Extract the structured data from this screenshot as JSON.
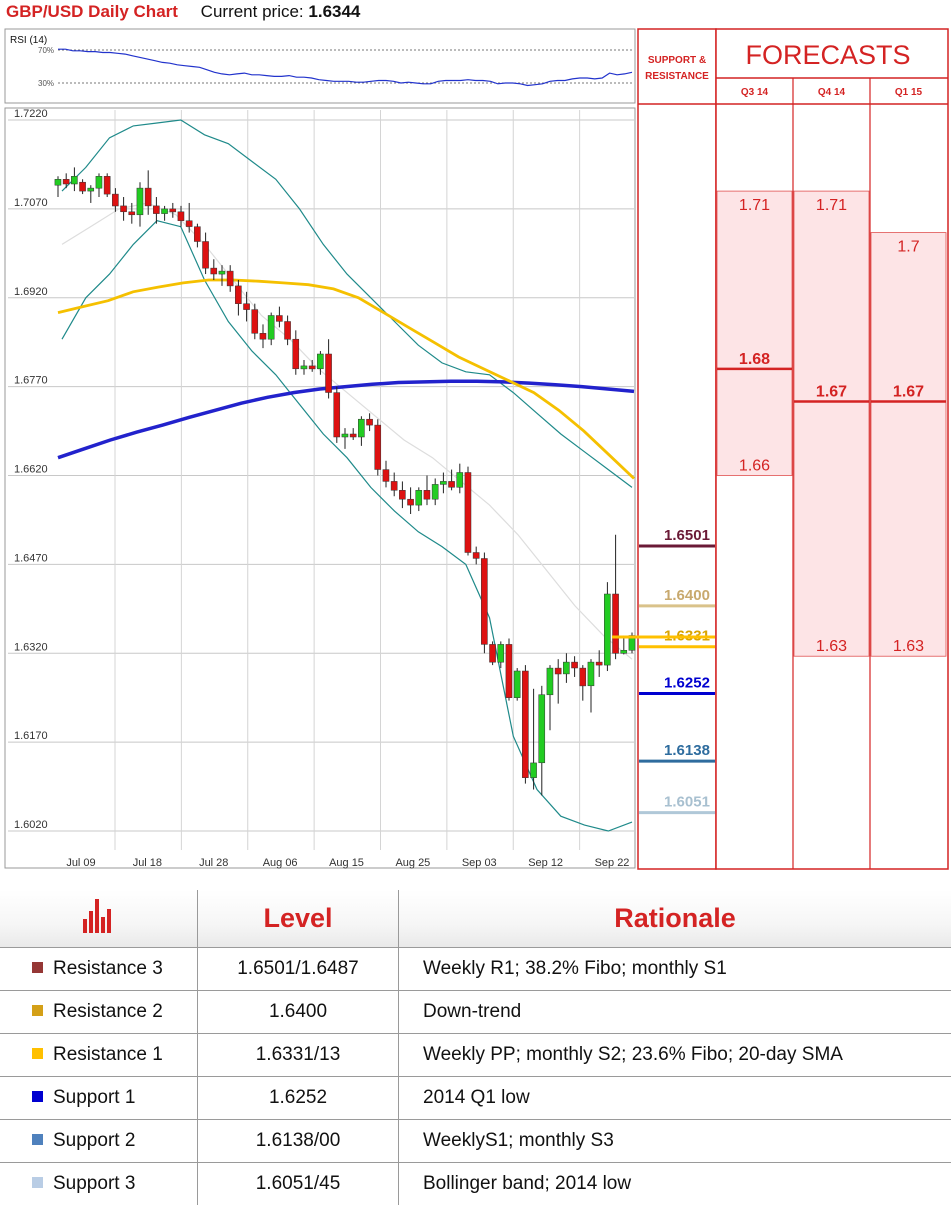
{
  "header": {
    "title": "GBP/USD Daily Chart",
    "price_label": "Current price:",
    "price_value": "1.6344"
  },
  "rsi": {
    "label": "RSI (14)",
    "levels": [
      "70%",
      "30%"
    ],
    "values": [
      71,
      71,
      69,
      69,
      68,
      68,
      67,
      67,
      66,
      65,
      63,
      61,
      59,
      57,
      55,
      54,
      52,
      51,
      50,
      49,
      46,
      43,
      41,
      40,
      41,
      42,
      40,
      40,
      39,
      38,
      38,
      39,
      37,
      37,
      36,
      34,
      33,
      32,
      32,
      32,
      31,
      31,
      32,
      33,
      33,
      32,
      30,
      31,
      30,
      29,
      29,
      32,
      33,
      33,
      33,
      34,
      33,
      33,
      32,
      29,
      30,
      30,
      29,
      27,
      28,
      29,
      32,
      33,
      33,
      35,
      36,
      36,
      35,
      36,
      42,
      40,
      41,
      43
    ]
  },
  "chart_data": {
    "type": "candlestick",
    "title": "GBP/USD Daily Chart",
    "ylim": [
      1.602,
      1.722
    ],
    "y_ticks": [
      "1.7220",
      "1.7070",
      "1.6920",
      "1.6770",
      "1.6620",
      "1.6470",
      "1.6320",
      "1.6170",
      "1.6020"
    ],
    "x_tick_labels": [
      "Jul 09",
      "Jul 18",
      "Jul 28",
      "Aug 06",
      "Aug 15",
      "Aug 25",
      "Sep 03",
      "Sep 12",
      "Sep 22"
    ],
    "candles": [
      [
        1.711,
        1.7125,
        1.709,
        1.712
      ],
      [
        1.712,
        1.713,
        1.7105,
        1.7112
      ],
      [
        1.7112,
        1.714,
        1.71,
        1.7125
      ],
      [
        1.7115,
        1.712,
        1.7095,
        1.71
      ],
      [
        1.71,
        1.711,
        1.708,
        1.7105
      ],
      [
        1.7105,
        1.713,
        1.709,
        1.7125
      ],
      [
        1.7125,
        1.713,
        1.709,
        1.7095
      ],
      [
        1.7095,
        1.7105,
        1.7065,
        1.7075
      ],
      [
        1.7075,
        1.709,
        1.705,
        1.7065
      ],
      [
        1.7065,
        1.708,
        1.7045,
        1.706
      ],
      [
        1.706,
        1.7115,
        1.704,
        1.7105
      ],
      [
        1.7105,
        1.7135,
        1.706,
        1.7075
      ],
      [
        1.7075,
        1.709,
        1.7045,
        1.7062
      ],
      [
        1.7062,
        1.7075,
        1.705,
        1.707
      ],
      [
        1.707,
        1.708,
        1.7055,
        1.7065
      ],
      [
        1.7065,
        1.7075,
        1.704,
        1.705
      ],
      [
        1.705,
        1.708,
        1.703,
        1.704
      ],
      [
        1.704,
        1.7045,
        1.7005,
        1.7015
      ],
      [
        1.7015,
        1.703,
        1.696,
        1.697
      ],
      [
        1.697,
        1.6985,
        1.695,
        1.696
      ],
      [
        1.696,
        1.6975,
        1.694,
        1.6965
      ],
      [
        1.6965,
        1.6975,
        1.693,
        1.694
      ],
      [
        1.694,
        1.695,
        1.689,
        1.691
      ],
      [
        1.691,
        1.693,
        1.688,
        1.69
      ],
      [
        1.69,
        1.691,
        1.685,
        1.686
      ],
      [
        1.686,
        1.6875,
        1.6835,
        1.685
      ],
      [
        1.685,
        1.6895,
        1.684,
        1.689
      ],
      [
        1.689,
        1.6905,
        1.687,
        1.688
      ],
      [
        1.688,
        1.689,
        1.684,
        1.685
      ],
      [
        1.685,
        1.6865,
        1.679,
        1.68
      ],
      [
        1.68,
        1.6815,
        1.679,
        1.6805
      ],
      [
        1.6805,
        1.6815,
        1.6795,
        1.68
      ],
      [
        1.68,
        1.683,
        1.679,
        1.6825
      ],
      [
        1.6825,
        1.685,
        1.675,
        1.676
      ],
      [
        1.676,
        1.677,
        1.6675,
        1.6685
      ],
      [
        1.6685,
        1.67,
        1.6665,
        1.669
      ],
      [
        1.669,
        1.67,
        1.668,
        1.6685
      ],
      [
        1.6685,
        1.672,
        1.667,
        1.6715
      ],
      [
        1.6715,
        1.6725,
        1.6695,
        1.6705
      ],
      [
        1.6705,
        1.6715,
        1.662,
        1.663
      ],
      [
        1.663,
        1.6645,
        1.66,
        1.661
      ],
      [
        1.661,
        1.6625,
        1.6585,
        1.6595
      ],
      [
        1.6595,
        1.661,
        1.6565,
        1.658
      ],
      [
        1.658,
        1.66,
        1.6555,
        1.657
      ],
      [
        1.657,
        1.66,
        1.656,
        1.6595
      ],
      [
        1.6595,
        1.662,
        1.657,
        1.658
      ],
      [
        1.658,
        1.6615,
        1.657,
        1.6605
      ],
      [
        1.6605,
        1.6625,
        1.659,
        1.661
      ],
      [
        1.661,
        1.663,
        1.6595,
        1.66
      ],
      [
        1.66,
        1.664,
        1.659,
        1.6625
      ],
      [
        1.6625,
        1.6635,
        1.6485,
        1.649
      ],
      [
        1.649,
        1.65,
        1.647,
        1.648
      ],
      [
        1.648,
        1.649,
        1.632,
        1.6335
      ],
      [
        1.6335,
        1.634,
        1.63,
        1.6305
      ],
      [
        1.6305,
        1.634,
        1.6295,
        1.6335
      ],
      [
        1.6335,
        1.6345,
        1.624,
        1.6245
      ],
      [
        1.6245,
        1.6295,
        1.624,
        1.629
      ],
      [
        1.629,
        1.63,
        1.61,
        1.611
      ],
      [
        1.611,
        1.626,
        1.609,
        1.6135
      ],
      [
        1.6135,
        1.6265,
        1.608,
        1.625
      ],
      [
        1.625,
        1.63,
        1.619,
        1.6295
      ],
      [
        1.6295,
        1.631,
        1.6235,
        1.6285
      ],
      [
        1.6285,
        1.632,
        1.627,
        1.6305
      ],
      [
        1.6305,
        1.6315,
        1.628,
        1.6295
      ],
      [
        1.6295,
        1.63,
        1.624,
        1.6265
      ],
      [
        1.6265,
        1.631,
        1.622,
        1.6305
      ],
      [
        1.6305,
        1.6325,
        1.628,
        1.63
      ],
      [
        1.63,
        1.644,
        1.629,
        1.642
      ],
      [
        1.642,
        1.652,
        1.631,
        1.632
      ],
      [
        1.632,
        1.635,
        1.6318,
        1.6325
      ],
      [
        1.6325,
        1.6355,
        1.632,
        1.635
      ]
    ],
    "series": [
      {
        "name": "",
        "values": [
          1.6895,
          1.6905,
          1.6915,
          1.693,
          1.6938,
          1.6945,
          1.695,
          1.695,
          1.6948,
          1.6945,
          1.6942,
          1.6935,
          1.692,
          1.6895,
          1.687,
          1.6845,
          1.682,
          1.68,
          1.678,
          1.676,
          1.673,
          1.6695,
          1.6655,
          1.6615
        ]
      },
      {
        "name": "",
        "values": [
          1.665,
          1.6665,
          1.668,
          1.6693,
          1.6705,
          1.6718,
          1.673,
          1.6742,
          1.6752,
          1.676,
          1.6766,
          1.677,
          1.6774,
          1.6777,
          1.6778,
          1.6779,
          1.6779,
          1.6778,
          1.6776,
          1.6773,
          1.677,
          1.6766,
          1.6762
        ]
      },
      {
        "name": "",
        "values": [
          1.71,
          1.714,
          1.719,
          1.721,
          1.7215,
          1.722,
          1.7195,
          1.718,
          1.715,
          1.712,
          1.707,
          1.701,
          1.696,
          1.692,
          1.688,
          1.684,
          1.681,
          1.6795,
          1.679,
          1.676,
          1.6725,
          1.669,
          1.666,
          1.663,
          1.66
        ]
      },
      {
        "name": "",
        "values": [
          1.685,
          1.692,
          1.696,
          1.701,
          1.705,
          1.704,
          1.695,
          1.688,
          1.683,
          1.679,
          1.674,
          1.669,
          1.665,
          1.66,
          1.656,
          1.6525,
          1.65,
          1.647,
          1.638,
          1.618,
          1.609,
          1.6045,
          1.603,
          1.602,
          1.6035
        ]
      },
      {
        "name": "",
        "values": [
          1.701,
          1.704,
          1.707,
          1.708,
          1.706,
          1.701,
          1.695,
          1.689,
          1.685,
          1.68,
          1.676,
          1.672,
          1.668,
          1.665,
          1.661,
          1.657,
          1.652,
          1.646,
          1.64,
          1.635,
          1.631
        ]
      }
    ]
  },
  "sr_panel": {
    "header": "SUPPORT & RESISTANCE",
    "levels": [
      {
        "label": "1.6501",
        "price": 1.6501,
        "color": "#6a1a36",
        "text": "#6a1a36"
      },
      {
        "label": "1.6400",
        "price": 1.64,
        "color": "#d9c28a",
        "text": "#c8a96e"
      },
      {
        "label": "1.6331",
        "price": 1.6331,
        "color": "#ffc000",
        "text": "#d9a400"
      },
      {
        "label": "1.6252",
        "price": 1.6252,
        "color": "#0000d0",
        "text": "#0000d0"
      },
      {
        "label": "1.6138",
        "price": 1.6138,
        "color": "#2e6c9e",
        "text": "#2e6c9e"
      },
      {
        "label": "1.6051",
        "price": 1.6051,
        "color": "#b0c8d8",
        "text": "#a8c0d0"
      }
    ]
  },
  "forecasts": {
    "title": "FORECASTS",
    "quarters": [
      {
        "label": "Q3 14",
        "high": "1.71",
        "high_price": 1.71,
        "mid": "1.68",
        "mid_price": 1.68,
        "low": "1.66",
        "low_price": 1.662
      },
      {
        "label": "Q4 14",
        "high": "1.71",
        "high_price": 1.71,
        "mid": "1.67",
        "mid_price": 1.6745,
        "low": "1.63",
        "low_price": 1.6315
      },
      {
        "label": "Q1 15",
        "high": "1.7",
        "high_price": 1.703,
        "mid": "1.67",
        "mid_price": 1.6745,
        "low": "1.63",
        "low_price": 1.6315
      }
    ]
  },
  "levels_table": {
    "headers": [
      "Level",
      "Rationale"
    ],
    "rows": [
      {
        "name": "Resistance 3",
        "color": "#953735",
        "level": "1.6501/1.6487",
        "rationale": "Weekly R1; 38.2% Fibo; monthly S1"
      },
      {
        "name": "Resistance 2",
        "color": "#d4a017",
        "level": "1.6400",
        "rationale": "Down-trend"
      },
      {
        "name": "Resistance 1",
        "color": "#ffc000",
        "level": "1.6331/13",
        "rationale": "Weekly PP; monthly S2; 23.6% Fibo; 20-day SMA"
      },
      {
        "name": "Support 1",
        "color": "#0000d0",
        "level": "1.6252",
        "rationale": "2014 Q1 low"
      },
      {
        "name": "Support 2",
        "color": "#4f81bd",
        "level": "1.6138/00",
        "rationale": "WeeklyS1; monthly S3"
      },
      {
        "name": "Support 3",
        "color": "#b9cde5",
        "level": "1.6051/45",
        "rationale": "Bollinger band; 2014 low"
      }
    ]
  },
  "colors": {
    "accent": "#d42323",
    "bull": "#22cc22",
    "bear": "#dd1111",
    "sma_slow": "#2222cc",
    "sma_fast": "#f5c000",
    "band": "#1f8a8a",
    "forecast_fill": "#fde4e6"
  }
}
